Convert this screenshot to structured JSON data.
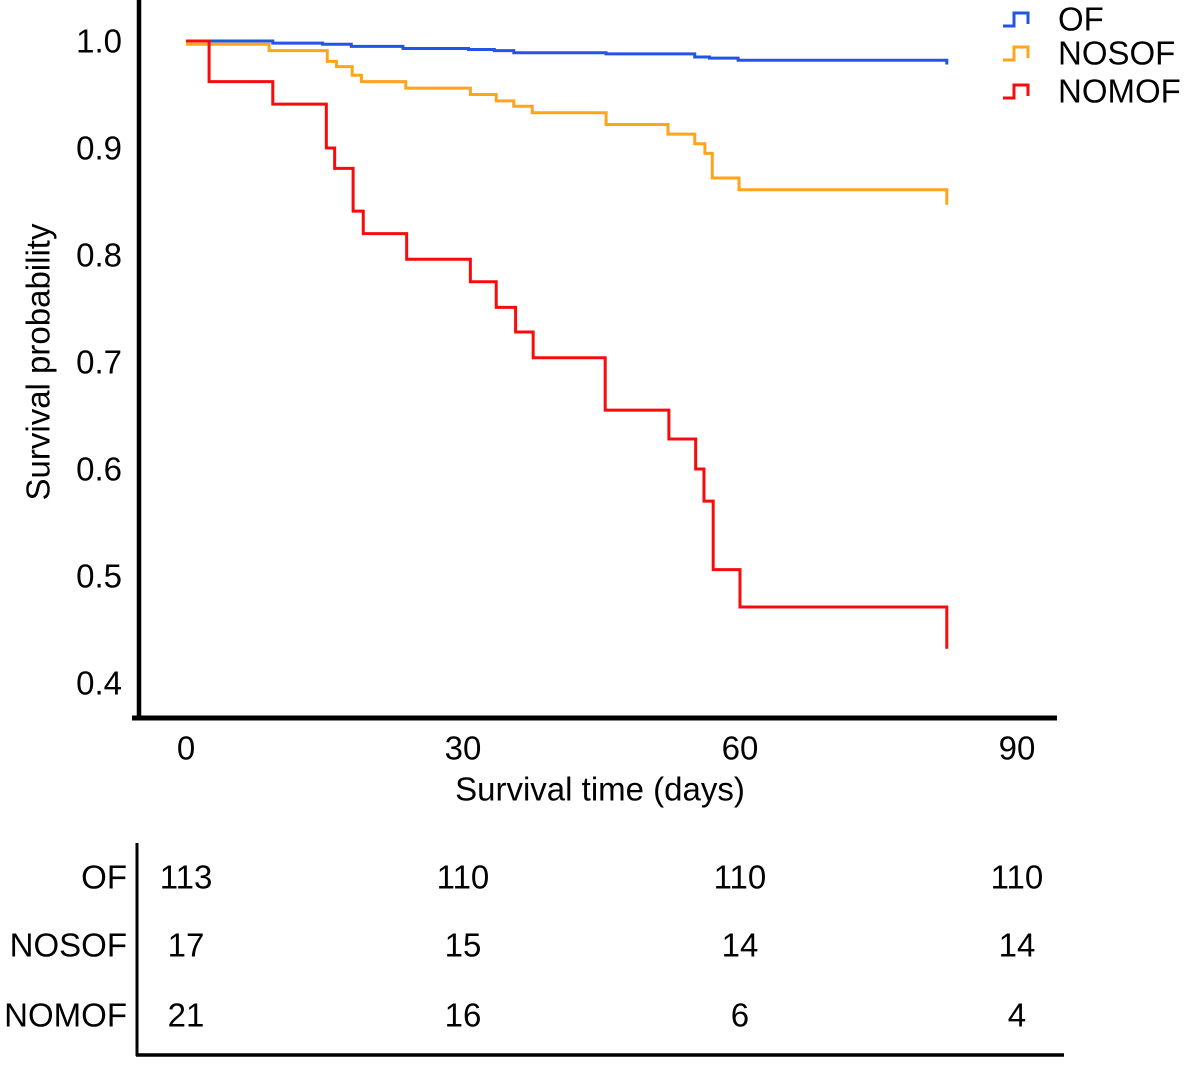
{
  "chart_data": {
    "type": "line",
    "subtype": "kaplan-meier-step",
    "title": "",
    "xlabel": "Survival time (days)",
    "ylabel": "Survival probability",
    "x_ticks": [
      "0",
      "30",
      "60",
      "90"
    ],
    "x_tick_values": [
      0,
      30,
      60,
      90
    ],
    "y_ticks": [
      "1.0",
      "0.9",
      "0.8",
      "0.7",
      "0.6",
      "0.5",
      "0.4"
    ],
    "y_tick_values": [
      1.0,
      0.9,
      0.8,
      0.7,
      0.6,
      0.5,
      0.4
    ],
    "xlim": [
      0,
      94
    ],
    "ylim": [
      0.36,
      1.04
    ],
    "grid": false,
    "legend_position": "top-right",
    "end_day": 82.4,
    "series": [
      {
        "name": "OF",
        "color": "#2255e6",
        "points": [
          [
            0,
            1.0
          ],
          [
            9.4,
            0.998
          ],
          [
            14.8,
            0.997
          ],
          [
            17.9,
            0.995
          ],
          [
            23.5,
            0.993
          ],
          [
            30.6,
            0.992
          ],
          [
            33.4,
            0.991
          ],
          [
            35.5,
            0.989
          ],
          [
            45.5,
            0.988
          ],
          [
            55.1,
            0.985
          ],
          [
            56.7,
            0.984
          ],
          [
            59.8,
            0.982
          ]
        ],
        "end_point": [
          82.4,
          0.978
        ]
      },
      {
        "name": "NOSOF",
        "color": "#ffa41b",
        "points": [
          [
            0,
            0.997
          ],
          [
            9.0,
            0.991
          ],
          [
            15.3,
            0.981
          ],
          [
            16.3,
            0.976
          ],
          [
            18.0,
            0.968
          ],
          [
            19.0,
            0.962
          ],
          [
            23.8,
            0.956
          ],
          [
            30.8,
            0.95
          ],
          [
            33.6,
            0.944
          ],
          [
            35.5,
            0.939
          ],
          [
            37.5,
            0.933
          ],
          [
            45.5,
            0.922
          ],
          [
            52.2,
            0.913
          ],
          [
            55.1,
            0.904
          ],
          [
            56.2,
            0.895
          ],
          [
            57.0,
            0.872
          ],
          [
            59.9,
            0.861
          ]
        ],
        "end_point": [
          82.4,
          0.847
        ]
      },
      {
        "name": "NOMOF",
        "color": "#f80b0b",
        "points": [
          [
            0,
            1.0
          ],
          [
            2.5,
            0.962
          ],
          [
            9.4,
            0.941
          ],
          [
            15.2,
            0.9
          ],
          [
            16.1,
            0.881
          ],
          [
            18.1,
            0.841
          ],
          [
            19.2,
            0.82
          ],
          [
            23.9,
            0.796
          ],
          [
            30.8,
            0.775
          ],
          [
            33.6,
            0.751
          ],
          [
            35.7,
            0.728
          ],
          [
            37.6,
            0.704
          ],
          [
            45.4,
            0.655
          ],
          [
            52.3,
            0.628
          ],
          [
            55.2,
            0.6
          ],
          [
            56.1,
            0.57
          ],
          [
            57.1,
            0.506
          ],
          [
            60.0,
            0.471
          ]
        ],
        "end_point": [
          82.4,
          0.432
        ]
      }
    ],
    "risk_table": {
      "time_points": [
        0,
        30,
        60,
        90
      ],
      "rows": [
        {
          "name": "OF",
          "counts": [
            "113",
            "110",
            "110",
            "110"
          ]
        },
        {
          "name": "NOSOF",
          "counts": [
            "17",
            "15",
            "14",
            "14"
          ]
        },
        {
          "name": "NOMOF",
          "counts": [
            "21",
            "16",
            "6",
            "4"
          ]
        }
      ]
    }
  }
}
